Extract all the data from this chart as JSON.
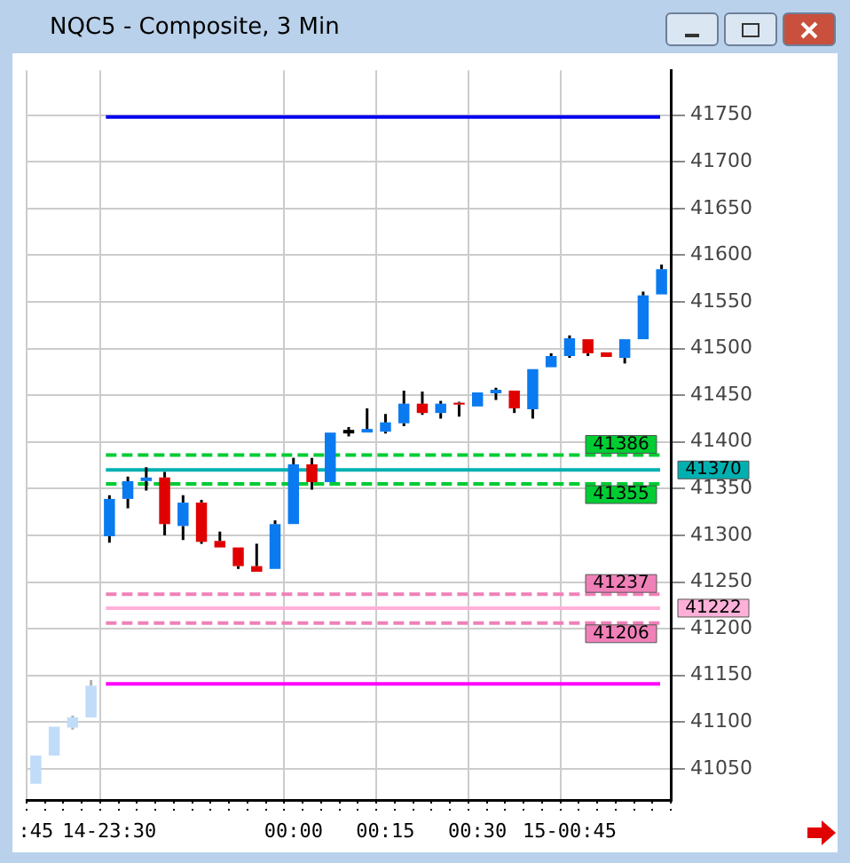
{
  "chart_data": {
    "type": "candlestick",
    "title": "NQC5 - Composite, 3 Min",
    "categories": [
      ":45",
      null,
      null,
      null,
      "14-23:30",
      null,
      null,
      null,
      null,
      null,
      null,
      null,
      null,
      null,
      "00:00",
      null,
      null,
      null,
      null,
      "00:15",
      null,
      null,
      null,
      null,
      "00:30",
      null,
      null,
      null,
      null,
      "15-00:45",
      null,
      null,
      null,
      null,
      null
    ],
    "ohlc": [
      [
        41034,
        41064,
        41034,
        41064
      ],
      [
        41064,
        41095,
        41064,
        41095
      ],
      [
        41094,
        41107,
        41092,
        41105
      ],
      [
        41105,
        41145,
        41105,
        41139
      ],
      [
        41299,
        41343,
        41292,
        41339
      ],
      [
        41339,
        41363,
        41329,
        41358
      ],
      [
        41360,
        41373,
        41348,
        41360
      ],
      [
        41362,
        41368,
        41300,
        41312
      ],
      [
        41310,
        41343,
        41295,
        41335
      ],
      [
        41335,
        41338,
        41291,
        41293
      ],
      [
        41294,
        41304,
        41287,
        41287
      ],
      [
        41287,
        41287,
        41264,
        41267
      ],
      [
        41267,
        41291,
        41261,
        41261
      ],
      [
        41264,
        41316,
        41264,
        41312
      ],
      [
        41312,
        41383,
        41312,
        41376
      ],
      [
        41376,
        41383,
        41349,
        41357
      ],
      [
        41357,
        41410,
        41357,
        41410
      ],
      [
        41411,
        41416,
        41406,
        41411
      ],
      [
        41412,
        41436,
        41412,
        41412
      ],
      [
        41411,
        41430,
        41409,
        41421
      ],
      [
        41420,
        41455,
        41417,
        41441
      ],
      [
        41441,
        41454,
        41429,
        41431
      ],
      [
        41431,
        41444,
        41425,
        41441
      ],
      [
        41442,
        41443,
        41427,
        41440
      ],
      [
        41438,
        41453,
        41438,
        41453
      ],
      [
        41454,
        41458,
        41445,
        41454
      ],
      [
        41455,
        41455,
        41431,
        41436
      ],
      [
        41435,
        41478,
        41425,
        41478
      ],
      [
        41480,
        41495,
        41480,
        41492
      ],
      [
        41492,
        41514,
        41490,
        41511
      ],
      [
        41510,
        41510,
        41492,
        41495
      ],
      [
        41496,
        41496,
        41491,
        41491
      ],
      [
        41490,
        41510,
        41484,
        41510
      ],
      [
        41510,
        41561,
        41510,
        41557
      ],
      [
        41558,
        41590,
        41558,
        41585
      ]
    ],
    "colors": [
      "#c0dcf8",
      "#c0dcf8",
      "#c0dcf8",
      "#c0dcf8",
      "#0a7af0",
      "#0a7af0",
      "#0a7af0",
      "#e00000",
      "#0a7af0",
      "#e00000",
      "#e00000",
      "#e00000",
      "#e00000",
      "#0a7af0",
      "#0a7af0",
      "#e00000",
      "#0a7af0",
      "#000000",
      "#0a7af0",
      "#0a7af0",
      "#0a7af0",
      "#e00000",
      "#0a7af0",
      "#e00000",
      "#0a7af0",
      "#0a7af0",
      "#e00000",
      "#0a7af0",
      "#0a7af0",
      "#0a7af0",
      "#e00000",
      "#e00000",
      "#0a7af0",
      "#0a7af0",
      "#0a7af0"
    ],
    "ylim": [
      41016,
      41798
    ],
    "yticks": [
      41050,
      41100,
      41150,
      41200,
      41250,
      41300,
      41350,
      41400,
      41450,
      41500,
      41550,
      41600,
      41650,
      41700,
      41750
    ],
    "ref_lines": [
      {
        "axis": "y",
        "value": 41748,
        "color": "#0000f0",
        "line_style": "solid"
      },
      {
        "axis": "y",
        "value": 41386,
        "label": "41386",
        "color": "#00cc33",
        "line_style": "dashed"
      },
      {
        "axis": "y",
        "value": 41370,
        "label": "41370",
        "color": "#00b0b0",
        "line_style": "solid"
      },
      {
        "axis": "y",
        "value": 41355,
        "label": "41355",
        "color": "#00cc33",
        "line_style": "dashed"
      },
      {
        "axis": "y",
        "value": 41237,
        "label": "41237",
        "color": "#f080b8",
        "line_style": "dashed"
      },
      {
        "axis": "y",
        "value": 41222,
        "label": "41222",
        "color": "#ffb0d8",
        "line_style": "solid"
      },
      {
        "axis": "y",
        "value": 41206,
        "label": "41206",
        "color": "#f080b8",
        "line_style": "dashed"
      },
      {
        "axis": "y",
        "value": 41141,
        "color": "#ff00ff",
        "line_style": "solid"
      }
    ],
    "grid": true,
    "legend": false
  }
}
